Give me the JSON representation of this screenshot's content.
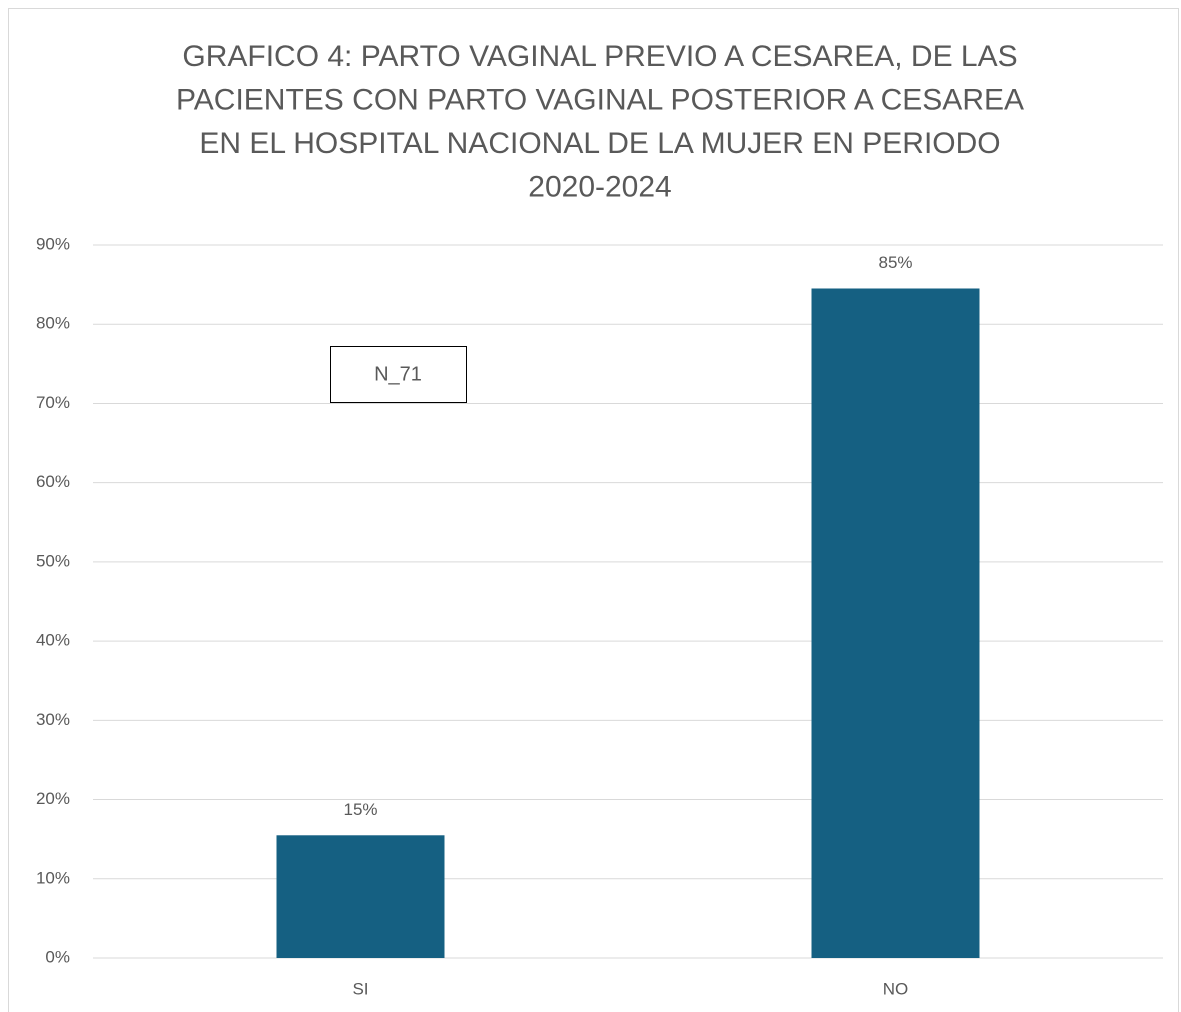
{
  "chart_data": {
    "type": "bar",
    "title": [
      "GRAFICO 4: PARTO VAGINAL PREVIO A CESAREA, DE LAS",
      "PACIENTES CON PARTO VAGINAL POSTERIOR A CESAREA",
      "EN EL HOSPITAL NACIONAL DE LA MUJER EN PERIODO",
      "2020-2024"
    ],
    "categories": [
      "SI",
      "NO"
    ],
    "values": [
      15.49,
      84.51
    ],
    "value_labels": [
      "15%",
      "85%"
    ],
    "color": "#156082",
    "annotation": "N_71",
    "ylim": [
      0,
      90
    ],
    "yticks": [
      {
        "value": 0,
        "label": "0%"
      },
      {
        "value": 10,
        "label": "10%"
      },
      {
        "value": 20,
        "label": "20%"
      },
      {
        "value": 30,
        "label": "30%"
      },
      {
        "value": 40,
        "label": "40%"
      },
      {
        "value": 50,
        "label": "50%"
      },
      {
        "value": 60,
        "label": "60%"
      },
      {
        "value": 70,
        "label": "70%"
      },
      {
        "value": 80,
        "label": "80%"
      },
      {
        "value": 90,
        "label": "90%"
      }
    ],
    "grid": true
  }
}
